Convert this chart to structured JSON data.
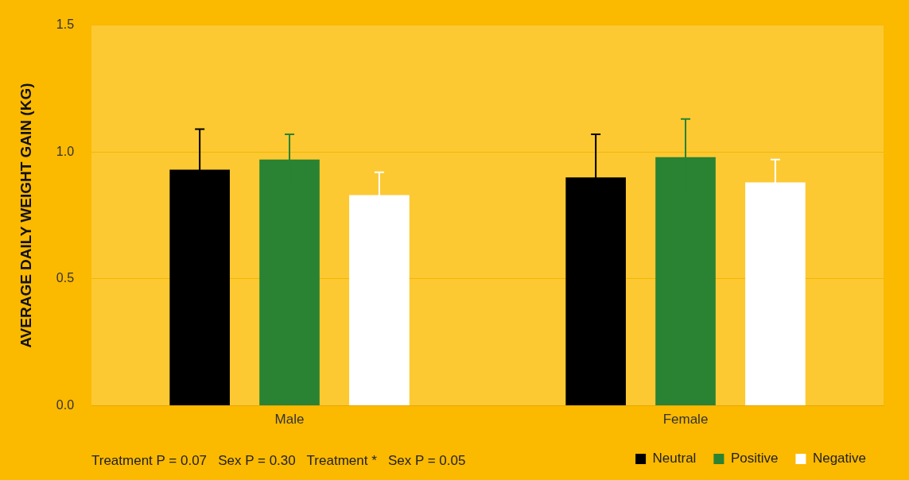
{
  "chart_data": {
    "type": "bar",
    "ylabel": "AVERAGE DAILY WEIGHT GAIN (KG)",
    "categories": [
      "Male",
      "Female"
    ],
    "series": [
      {
        "name": "Neutral",
        "color": "#000000",
        "values": [
          0.93,
          0.9
        ],
        "errors": [
          0.16,
          0.17
        ]
      },
      {
        "name": "Positive",
        "color": "#2a8233",
        "values": [
          0.97,
          0.98
        ],
        "errors": [
          0.1,
          0.15
        ]
      },
      {
        "name": "Negative",
        "color": "#ffffff",
        "values": [
          0.83,
          0.88
        ],
        "errors": [
          0.09,
          0.09
        ]
      }
    ],
    "ylim": [
      0,
      1.5
    ],
    "yticks": [
      {
        "value": 0,
        "label": "0.0"
      },
      {
        "value": 0.5,
        "label": "0.5"
      },
      {
        "value": 1,
        "label": "1.0"
      },
      {
        "value": 1.5,
        "label": "1.5"
      }
    ],
    "grid": "y",
    "legend": "bottom right",
    "annotations": [
      "Treatment P = 0.07   Sex P = 0.30   Treatment *   Sex P = 0.05"
    ]
  }
}
